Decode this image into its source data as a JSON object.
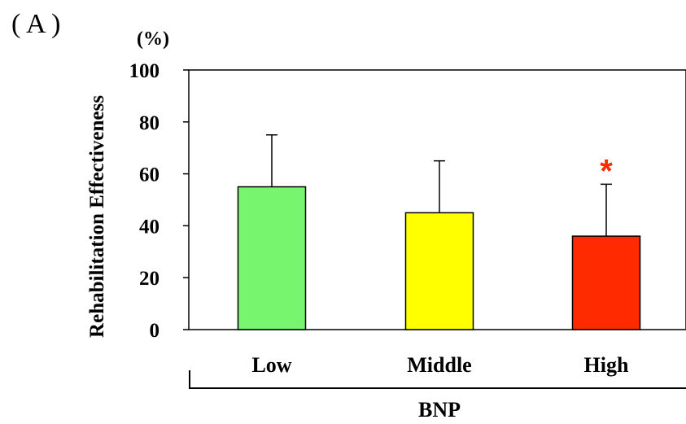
{
  "panel_label": "( A )",
  "chart_data": {
    "type": "bar",
    "title": "",
    "xlabel": "BNP",
    "ylabel": "Rehabilitation Effectiveness",
    "y_unit": "(%)",
    "ylim": [
      0,
      100
    ],
    "yticks": [
      0,
      20,
      40,
      60,
      80,
      100
    ],
    "categories": [
      "Low",
      "Middle",
      "High"
    ],
    "values": [
      55,
      45,
      36
    ],
    "error_upper": [
      75,
      65,
      56
    ],
    "bar_colors": [
      "#77f56e",
      "#ffff00",
      "#ff2a00"
    ],
    "significance": [
      "",
      "",
      "*"
    ],
    "significance_color": "#ff2a00",
    "grid": false,
    "legend": "none"
  }
}
